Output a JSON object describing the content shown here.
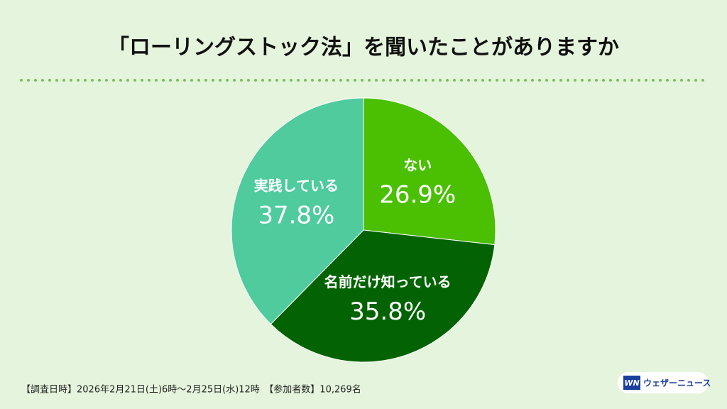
{
  "chart_data": {
    "type": "pie",
    "title": "「ローリングストック法」を聞いたことがありますか",
    "categories": [
      "ない",
      "名前だけ知っている",
      "実践している"
    ],
    "values": [
      26.9,
      35.8,
      37.8
    ],
    "value_labels": [
      "26.9%",
      "35.8%",
      "37.8%"
    ],
    "colors": [
      "#4bbf02",
      "#036303",
      "#4fcb9e"
    ],
    "footnote": "【調査日時】2026年2月21日(土)6時〜2月25日(水)12時　【参加者数】10,269名",
    "logo": {
      "mark": "WN",
      "text": "ウェザーニュース"
    }
  }
}
